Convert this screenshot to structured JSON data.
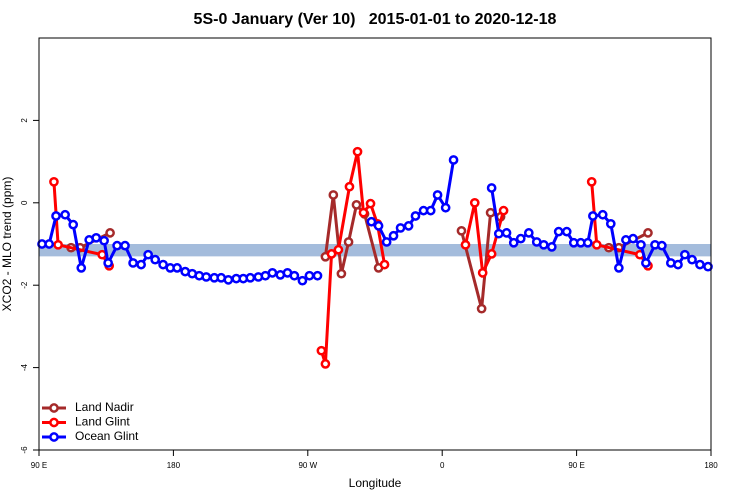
{
  "chart_data": {
    "type": "line",
    "title": "5S-0 January (Ver 10)   2015-01-01 to 2020-12-18",
    "x_label": "Longitude",
    "y_label": "XCO2 - MLO trend (ppm)",
    "xlim": [
      90,
      540
    ],
    "xticks": [
      {
        "value": 90,
        "label": "90 E"
      },
      {
        "value": 180,
        "label": "180"
      },
      {
        "value": 270,
        "label": "90 W"
      },
      {
        "value": 360,
        "label": "0"
      },
      {
        "value": 450,
        "label": "90 E"
      },
      {
        "value": 540,
        "label": "180"
      }
    ],
    "ylim": [
      -6,
      4
    ],
    "yticks": [
      -6,
      -4,
      -2,
      0,
      2
    ],
    "band": [
      -1.3,
      -1.0
    ],
    "band_color": "#a4bcdc",
    "legend": "bottom-left",
    "series": [
      {
        "name": "Land Nadir",
        "color": "#a52a2a",
        "x": [
          111.5,
          117.5,
          137.6,
          200,
          281.8,
          287.1,
          292.5,
          297.3,
          302.6,
          308.0,
          317.4,
          340,
          372.9,
          386.4,
          392.4,
          399.1,
          430,
          471.6,
          478.3,
          497.8
        ],
        "values": [
          -1.09,
          -1.09,
          -0.73,
          null,
          -1.31,
          0.19,
          -1.72,
          -0.95,
          -0.05,
          -0.27,
          -1.58,
          null,
          -0.68,
          -2.57,
          -0.24,
          -0.34,
          null,
          -1.09,
          -1.09,
          -0.73
        ]
      },
      {
        "name": "Land Glint",
        "color": "#ff0000",
        "x": [
          100.0,
          102.8,
          132.3,
          137.0,
          200,
          279.1,
          281.8,
          285.9,
          290.5,
          297.9,
          303.3,
          307.3,
          312.0,
          316.6,
          321.4,
          340,
          375.6,
          381.8,
          387.1,
          393.1,
          401.1,
          430,
          460.1,
          463.5,
          492.4,
          497.8
        ],
        "values": [
          0.51,
          -1.02,
          -1.26,
          -1.53,
          null,
          -3.59,
          -3.91,
          -1.24,
          -1.14,
          0.39,
          1.24,
          -0.24,
          -0.02,
          -0.51,
          -1.5,
          null,
          -1.02,
          0.0,
          -1.7,
          -1.24,
          -0.19,
          null,
          0.51,
          -1.02,
          -1.26,
          -1.53
        ]
      },
      {
        "name": "Ocean Glint",
        "color": "#0000ff",
        "x": [
          92.0,
          96.8,
          101.4,
          107.5,
          112.9,
          118.3,
          123.6,
          128.3,
          133.6,
          136.3,
          142.3,
          147.6,
          153.0,
          158.4,
          163.1,
          167.8,
          173.1,
          177.9,
          182.5,
          187.9,
          192.6,
          197.3,
          202.0,
          207.4,
          212.0,
          216.8,
          222.1,
          226.8,
          231.5,
          236.9,
          241.6,
          246.3,
          251.6,
          256.4,
          261.0,
          266.4,
          271.1,
          276.5,
          300,
          312.6,
          317.4,
          322.8,
          327.4,
          332.1,
          337.5,
          342.1,
          347.5,
          352.3,
          356.9,
          362.3,
          367.6,
          380,
          393.1,
          397.9,
          403.1,
          407.9,
          412.6,
          418.0,
          423.3,
          428.0,
          433.4,
          438.0,
          443.4,
          448.1,
          452.8,
          457.5,
          460.9,
          467.5,
          472.9,
          478.3,
          483.0,
          487.8,
          493.1,
          496.4,
          502.5,
          507.1,
          513.1,
          517.9,
          522.5,
          527.3,
          532.6,
          538.0
        ],
        "values": [
          -1.0,
          -1.0,
          -0.32,
          -0.29,
          -0.53,
          -1.58,
          -0.9,
          -0.85,
          -0.92,
          -1.46,
          -1.04,
          -1.04,
          -1.46,
          -1.5,
          -1.26,
          -1.38,
          -1.5,
          -1.58,
          -1.58,
          -1.67,
          -1.72,
          -1.77,
          -1.8,
          -1.82,
          -1.82,
          -1.87,
          -1.84,
          -1.84,
          -1.82,
          -1.8,
          -1.77,
          -1.7,
          -1.75,
          -1.7,
          -1.77,
          -1.89,
          -1.77,
          -1.77,
          null,
          -0.46,
          -0.56,
          -0.95,
          -0.8,
          -0.61,
          -0.56,
          -0.32,
          -0.19,
          -0.19,
          0.19,
          -0.12,
          1.04,
          null,
          0.36,
          -0.75,
          -0.73,
          -0.97,
          -0.87,
          -0.73,
          -0.95,
          -1.02,
          -1.07,
          -0.7,
          -0.7,
          -0.97,
          -0.97,
          -0.97,
          -0.32,
          -0.29,
          -0.51,
          -1.58,
          -0.9,
          -0.87,
          -1.02,
          -1.46,
          -1.02,
          -1.04,
          -1.46,
          -1.5,
          -1.26,
          -1.38,
          -1.5,
          -1.55
        ]
      }
    ]
  }
}
